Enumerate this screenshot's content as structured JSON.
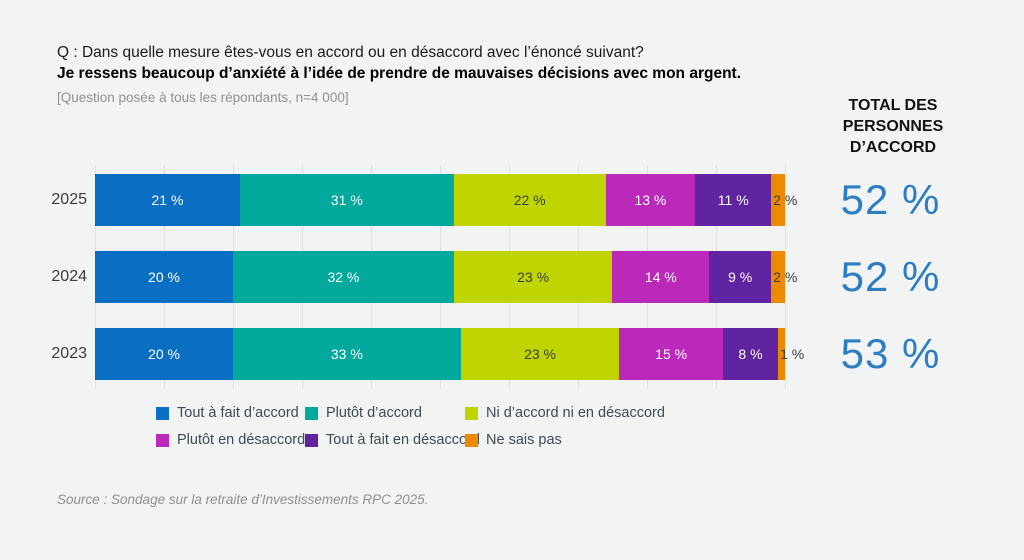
{
  "header": {
    "question": "Q : Dans quelle mesure êtes-vous en accord ou en désaccord avec l’énoncé suivant?",
    "statement": "Je ressens beaucoup d’anxiété à l’idée de prendre de mauvaises décisions avec mon argent.",
    "note": "[Question posée à tous les répondants, n=4 000]"
  },
  "total_header": {
    "line1": "TOTAL DES",
    "line2": "PERSONNES",
    "line3": "D’ACCORD"
  },
  "chart_data": {
    "type": "bar",
    "orientation": "horizontal-stacked",
    "title": "",
    "categories": [
      "2025",
      "2024",
      "2023"
    ],
    "series": [
      {
        "name": "Tout à fait d’accord",
        "color": "#0a6ec3",
        "label_color": "#ffffff",
        "values": [
          21,
          20,
          20
        ]
      },
      {
        "name": "Plutôt d’accord",
        "color": "#00a99b",
        "label_color": "#ffffff",
        "values": [
          31,
          32,
          33
        ]
      },
      {
        "name": "Ni d’accord ni en désaccord",
        "color": "#c0d500",
        "label_color": "#3c4043",
        "values": [
          22,
          23,
          23
        ]
      },
      {
        "name": "Plutôt en désaccord",
        "color": "#ba29b9",
        "label_color": "#ffffff",
        "values": [
          13,
          14,
          15
        ]
      },
      {
        "name": "Tout à fait en désaccord",
        "color": "#6024a0",
        "label_color": "#ffffff",
        "values": [
          11,
          9,
          8
        ]
      },
      {
        "name": "Ne sais pas",
        "color": "#ec8b00",
        "label_color": "#3c4043",
        "label_outside": true,
        "values": [
          2,
          2,
          1
        ]
      }
    ],
    "value_suffix": " %",
    "totals": [
      "52 %",
      "52 %",
      "53 %"
    ],
    "xlim": [
      0,
      100
    ],
    "grid": true,
    "grid_step": 10,
    "legend_position": "bottom"
  },
  "source": "Source : Sondage sur la retraite d’Investissements RPC 2025.",
  "colors": {
    "background": "#f2f3f3",
    "gridline": "#e0e0e1",
    "total_text": "#2d7dc3"
  }
}
